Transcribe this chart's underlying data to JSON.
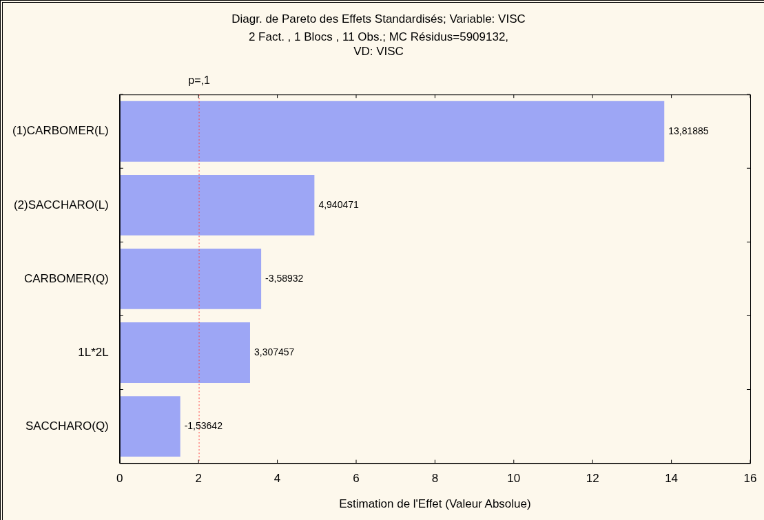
{
  "chart_data": {
    "type": "bar",
    "orientation": "horizontal",
    "title": "Diagr. de Pareto des Effets Standardisés; Variable: VISC",
    "subtitle": "2 Fact. , 1 Blocs , 11 Obs.; MC Résidus=5909132,\nVD: VISC",
    "xlabel": "Estimation de l'Effet (Valeur Absolue)",
    "categories": [
      "(1)CARBOMER(L)",
      "(2)SACCHARO(L)",
      "CARBOMER(Q)",
      "1L*2L",
      "SACCHARO(Q)"
    ],
    "values": [
      13.81885,
      4.940471,
      3.58932,
      3.307457,
      1.53642
    ],
    "value_labels": [
      "13,81885",
      "4,940471",
      "-3,58932",
      "3,307457",
      "-1,53642"
    ],
    "color": "#9da6f5",
    "xlim": [
      0,
      16
    ],
    "xticks": [
      0,
      2,
      4,
      6,
      8,
      10,
      12,
      14,
      16
    ],
    "ref_lines": [
      {
        "axis": "x",
        "value": 2.015,
        "label": "p=,1",
        "color": "#ff4040",
        "line_style": "dotted"
      }
    ],
    "grid": false,
    "legend": false
  }
}
